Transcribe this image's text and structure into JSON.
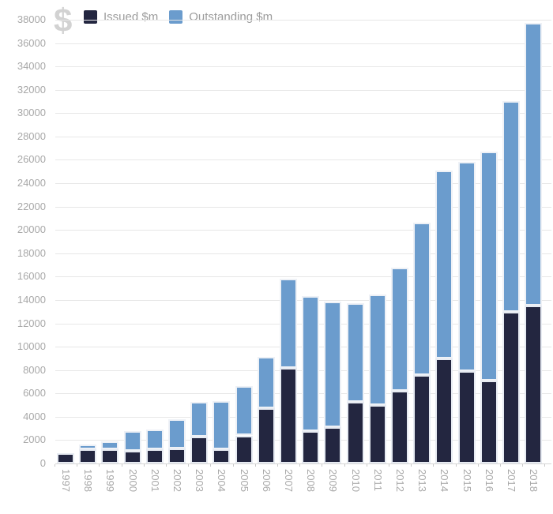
{
  "header": {
    "currency_symbol": "$"
  },
  "legend": {
    "items": [
      {
        "label": "Issued $m",
        "color": "#232640"
      },
      {
        "label": "Outstanding $m",
        "color": "#6b9ccd"
      }
    ]
  },
  "chart_data": {
    "type": "bar",
    "stacked": true,
    "title": "",
    "xlabel": "",
    "ylabel": "",
    "categories": [
      "1997",
      "1998",
      "1999",
      "2000",
      "2001",
      "2002",
      "2003",
      "2004",
      "2005",
      "2006",
      "2007",
      "2008",
      "2009",
      "2010",
      "2011",
      "2012",
      "2013",
      "2014",
      "2015",
      "2016",
      "2017",
      "2018"
    ],
    "series": [
      {
        "name": "Issued $m",
        "color": "#232640",
        "values": [
          900,
          1200,
          1250,
          1100,
          1200,
          1300,
          2300,
          1200,
          2400,
          4700,
          8200,
          2800,
          3100,
          5300,
          5000,
          6200,
          7600,
          9000,
          7900,
          7100,
          13000,
          13500
        ]
      },
      {
        "name": "Outstanding $m",
        "color": "#6b9ccd",
        "values": [
          0,
          400,
          650,
          1700,
          1700,
          2500,
          3000,
          4150,
          4250,
          4400,
          7650,
          11550,
          10750,
          8450,
          9450,
          10550,
          13000,
          16100,
          17950,
          19600,
          18050,
          24200
        ]
      }
    ],
    "stack_totals": [
      900,
      1600,
      1900,
      2800,
      2900,
      3800,
      5300,
      5350,
      6650,
      9100,
      15850,
      14350,
      13850,
      13750,
      14450,
      16750,
      20600,
      25100,
      25850,
      26700,
      31050,
      37700
    ],
    "ylim": [
      0,
      38000
    ],
    "ytick_step": 2000,
    "ytick_labels": [
      "0",
      "2000",
      "4000",
      "6000",
      "8000",
      "10000",
      "12000",
      "14000",
      "16000",
      "18000",
      "20000",
      "22000",
      "24000",
      "26000",
      "28000",
      "30000",
      "32000",
      "34000",
      "36000",
      "38000"
    ],
    "grid": true,
    "legend_position": "top"
  }
}
